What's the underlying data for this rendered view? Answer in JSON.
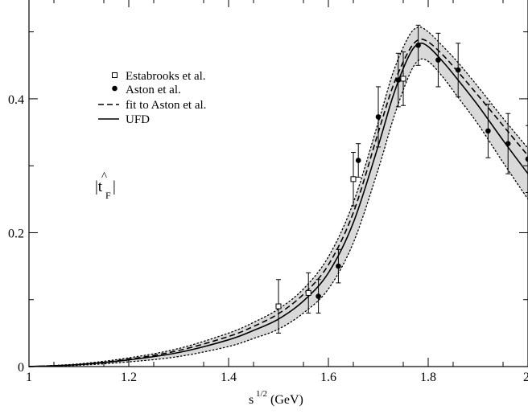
{
  "chart_data": {
    "type": "line",
    "title": "",
    "xlabel_base": "s",
    "xlabel_sup": "1/2",
    "xlabel_unit": "(GeV)",
    "ylabel_hat": "^",
    "ylabel_main": "|t",
    "ylabel_sub": "F",
    "ylabel_end": "|",
    "xlim": [
      1.0,
      2.0
    ],
    "ylim": [
      0.0,
      0.55
    ],
    "x_ticks": [
      1.0,
      1.2,
      1.4,
      1.6,
      1.8,
      2.0
    ],
    "x_tick_labels": [
      "1",
      "1.2",
      "1.4",
      "1.6",
      "1.8",
      "2"
    ],
    "y_ticks": [
      0.0,
      0.2,
      0.4
    ],
    "y_tick_labels": [
      "0",
      "0.2",
      "0.4"
    ],
    "grid": false,
    "legend_position": "top-left",
    "legend": [
      {
        "label": "Estabrooks et al.",
        "symbol": "open-square"
      },
      {
        "label": "Aston et al.",
        "symbol": "filled-circle"
      },
      {
        "label": "fit to Aston et al.",
        "symbol": "dashed-line"
      },
      {
        "label": "UFD",
        "symbol": "solid-line"
      }
    ],
    "series": [
      {
        "name": "Estabrooks et al.",
        "kind": "points",
        "marker": "open-square",
        "points": [
          {
            "x": 1.5,
            "y": 0.09,
            "err": 0.04
          },
          {
            "x": 1.56,
            "y": 0.11,
            "err": 0.03
          },
          {
            "x": 1.65,
            "y": 0.28,
            "err": 0.04
          },
          {
            "x": 1.75,
            "y": 0.43,
            "err": 0.04
          }
        ]
      },
      {
        "name": "Aston et al.",
        "kind": "points",
        "marker": "filled-circle",
        "points": [
          {
            "x": 1.58,
            "y": 0.105,
            "err": 0.025
          },
          {
            "x": 1.62,
            "y": 0.15,
            "err": 0.025
          },
          {
            "x": 1.66,
            "y": 0.308,
            "err": 0.025
          },
          {
            "x": 1.7,
            "y": 0.373,
            "err": 0.045
          },
          {
            "x": 1.74,
            "y": 0.428,
            "err": 0.04
          },
          {
            "x": 1.78,
            "y": 0.48,
            "err": 0.03
          },
          {
            "x": 1.82,
            "y": 0.458,
            "err": 0.04
          },
          {
            "x": 1.86,
            "y": 0.443,
            "err": 0.04
          },
          {
            "x": 1.92,
            "y": 0.352,
            "err": 0.04
          },
          {
            "x": 1.96,
            "y": 0.333,
            "err": 0.045
          },
          {
            "x": 2.0,
            "y": 0.31,
            "err": 0.05
          }
        ]
      },
      {
        "name": "fit to Aston et al.",
        "kind": "line",
        "style": "dashed",
        "x": [
          1.0,
          1.1,
          1.2,
          1.3,
          1.4,
          1.45,
          1.5,
          1.55,
          1.6,
          1.65,
          1.7,
          1.73,
          1.76,
          1.78,
          1.8,
          1.83,
          1.86,
          1.9,
          1.95,
          2.0
        ],
        "y": [
          0.0,
          0.003,
          0.011,
          0.024,
          0.045,
          0.06,
          0.079,
          0.108,
          0.152,
          0.23,
          0.35,
          0.42,
          0.47,
          0.488,
          0.485,
          0.465,
          0.44,
          0.405,
          0.36,
          0.315
        ]
      },
      {
        "name": "UFD",
        "kind": "line",
        "style": "solid",
        "x": [
          1.0,
          1.1,
          1.2,
          1.3,
          1.4,
          1.45,
          1.5,
          1.55,
          1.6,
          1.65,
          1.7,
          1.73,
          1.76,
          1.78,
          1.8,
          1.83,
          1.86,
          1.9,
          1.95,
          2.0
        ],
        "y": [
          0.0,
          0.003,
          0.01,
          0.021,
          0.04,
          0.054,
          0.071,
          0.098,
          0.14,
          0.215,
          0.33,
          0.405,
          0.462,
          0.482,
          0.478,
          0.455,
          0.428,
          0.39,
          0.338,
          0.288
        ]
      },
      {
        "name": "UFD uncertainty",
        "kind": "band",
        "x": [
          1.0,
          1.1,
          1.2,
          1.3,
          1.4,
          1.45,
          1.5,
          1.55,
          1.6,
          1.65,
          1.7,
          1.73,
          1.76,
          1.78,
          1.8,
          1.83,
          1.86,
          1.9,
          1.95,
          2.0
        ],
        "y_low": [
          0.0,
          0.002,
          0.007,
          0.015,
          0.03,
          0.042,
          0.056,
          0.08,
          0.116,
          0.185,
          0.295,
          0.37,
          0.432,
          0.457,
          0.456,
          0.432,
          0.402,
          0.362,
          0.305,
          0.25
        ],
        "y_high": [
          0.0,
          0.004,
          0.013,
          0.027,
          0.05,
          0.066,
          0.086,
          0.116,
          0.164,
          0.245,
          0.365,
          0.44,
          0.492,
          0.507,
          0.5,
          0.478,
          0.454,
          0.418,
          0.371,
          0.326
        ]
      }
    ]
  }
}
